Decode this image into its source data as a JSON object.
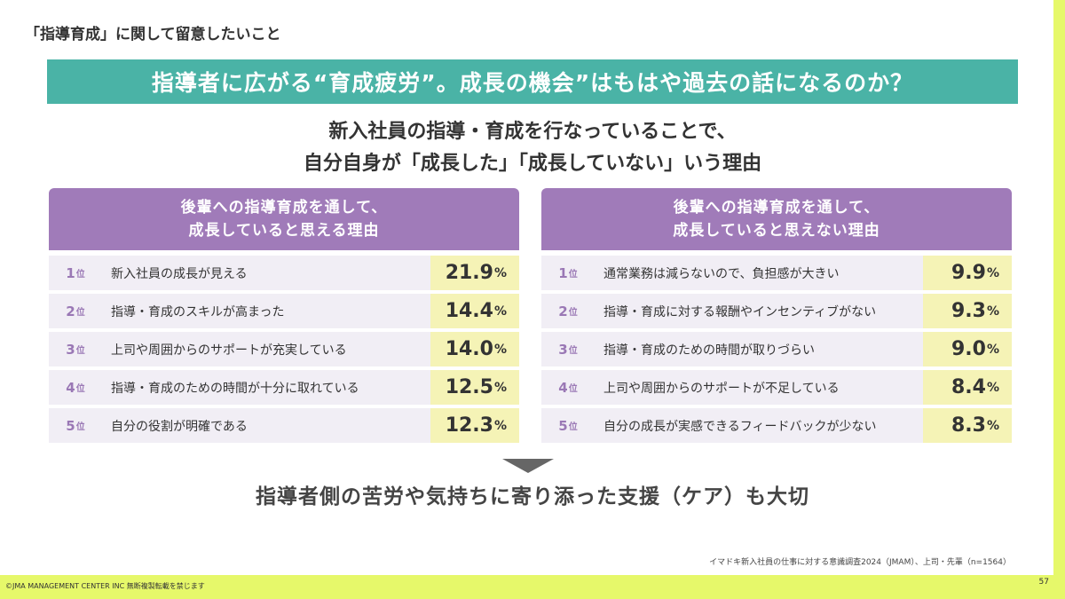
{
  "section_label": "「指導育成」に関して留意したいこと",
  "banner": "指導者に広がる“育成疲労”。成長の機会”はもはや過去の話になるのか？",
  "subtitle": {
    "line1": "新入社員の指導・育成を行なっていることで、",
    "line2": "自分自身が「成長した」「成長していない」いう理由"
  },
  "left_panel": {
    "title_line1": "後輩への指導育成を通して、",
    "title_line2": "成長していると思える理由",
    "items": [
      {
        "rank": "1",
        "rank_suffix": "位",
        "reason": "新入社員の成長が見える",
        "value": "21.9",
        "unit": "%"
      },
      {
        "rank": "2",
        "rank_suffix": "位",
        "reason": "指導・育成のスキルが高まった",
        "value": "14.4",
        "unit": "%"
      },
      {
        "rank": "3",
        "rank_suffix": "位",
        "reason": "上司や周囲からのサポートが充実している",
        "value": "14.0",
        "unit": "%"
      },
      {
        "rank": "4",
        "rank_suffix": "位",
        "reason": "指導・育成のための時間が十分に取れている",
        "value": "12.5",
        "unit": "%"
      },
      {
        "rank": "5",
        "rank_suffix": "位",
        "reason": "自分の役割が明確である",
        "value": "12.3",
        "unit": "%"
      }
    ]
  },
  "right_panel": {
    "title_line1": "後輩への指導育成を通して、",
    "title_line2": "成長していると思えない理由",
    "items": [
      {
        "rank": "1",
        "rank_suffix": "位",
        "reason": "通常業務は減らないので、負担感が大きい",
        "value": "9.9",
        "unit": "%"
      },
      {
        "rank": "2",
        "rank_suffix": "位",
        "reason": "指導・育成に対する報酬やインセンティブがない",
        "value": "9.3",
        "unit": "%"
      },
      {
        "rank": "3",
        "rank_suffix": "位",
        "reason": "指導・育成のための時間が取りづらい",
        "value": "9.0",
        "unit": "%"
      },
      {
        "rank": "4",
        "rank_suffix": "位",
        "reason": "上司や周囲からのサポートが不足している",
        "value": "8.4",
        "unit": "%"
      },
      {
        "rank": "5",
        "rank_suffix": "位",
        "reason": "自分の成長が実感できるフィードバックが少ない",
        "value": "8.3",
        "unit": "%"
      }
    ]
  },
  "conclusion": "指導者側の苦労や気持ちに寄り添った支援（ケア）も大切",
  "source": "イマドキ新入社員の仕事に対する意識調査2024（JMAM）、上司・先輩（n=1564）",
  "copyright": "©JMA MANAGEMENT CENTER INC 無断複製転載を禁じます",
  "page_number": "57",
  "colors": {
    "background": "#e6f86a",
    "banner": "#4ab3a6",
    "panel_header": "#a07bb9",
    "row": "#f1eef5",
    "value_cell": "#f5f3b6",
    "rank": "#9a78b5"
  }
}
